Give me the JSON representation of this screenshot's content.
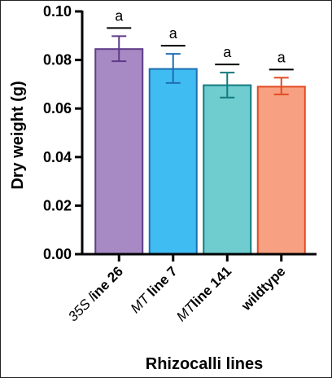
{
  "chart_data": {
    "type": "bar",
    "title": "",
    "xlabel": "Rhizocalli lines",
    "ylabel": "Dry weight (g)",
    "ylim": [
      0,
      0.1
    ],
    "yticks": [
      "0.00",
      "0.02",
      "0.04",
      "0.06",
      "0.08",
      "0.10"
    ],
    "ytick_values": [
      0,
      0.02,
      0.04,
      0.06,
      0.08,
      0.1
    ],
    "categories": [
      "35S line 26",
      "MT line 7",
      "MTline 141",
      "wildtype"
    ],
    "category_parts": [
      [
        {
          "t": "35S",
          "i": true
        },
        {
          "t": " ",
          "i": false
        },
        {
          "t": "l",
          "i": true
        },
        {
          "t": "ine 26",
          "i": false
        }
      ],
      [
        {
          "t": "MT",
          "i": true
        },
        {
          "t": " line 7",
          "i": false
        }
      ],
      [
        {
          "t": "MT",
          "i": true
        },
        {
          "t": "line 141",
          "i": false
        }
      ],
      [
        {
          "t": "wildtype",
          "i": false
        }
      ]
    ],
    "values": [
      0.0845,
      0.0763,
      0.0696,
      0.069
    ],
    "error_upper": [
      0.0898,
      0.0825,
      0.0748,
      0.0727
    ],
    "error_lower": [
      0.0795,
      0.0705,
      0.0645,
      0.0658
    ],
    "significance": [
      "a",
      "a",
      "a",
      "a"
    ],
    "colors": {
      "fill": [
        "#a78ac4",
        "#3fbcf2",
        "#6fcdd0",
        "#f7a182"
      ],
      "stroke": [
        "#5e3b87",
        "#1f6fb3",
        "#137a80",
        "#e24a22"
      ],
      "axis": "#000000",
      "sig_bar": "#000000"
    }
  }
}
